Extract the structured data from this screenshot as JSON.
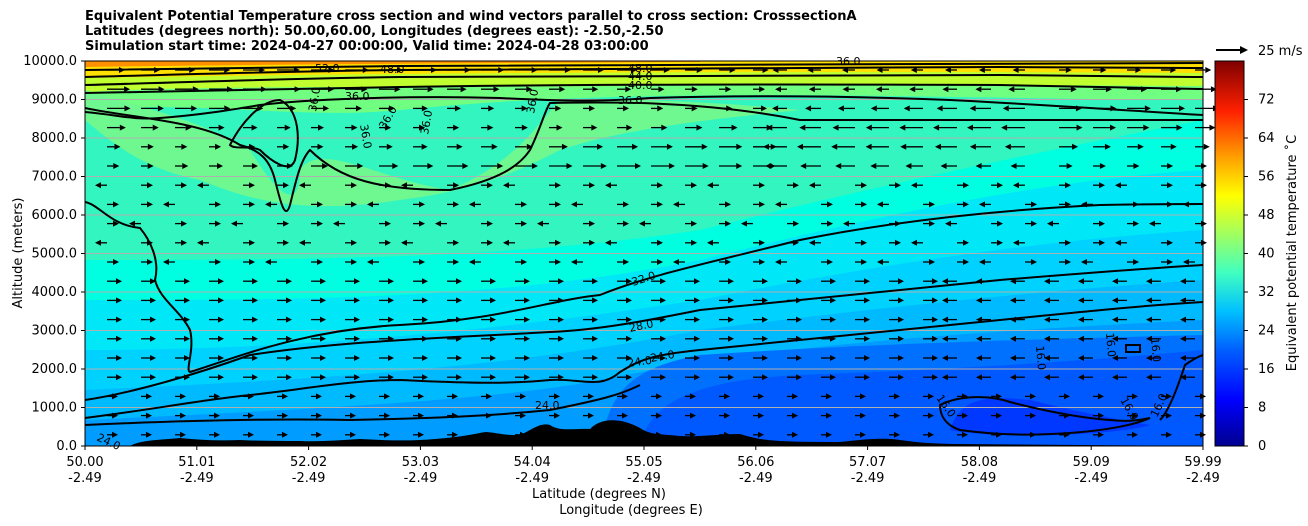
{
  "chart_data": {
    "type": "heatmap",
    "title_lines": [
      "Equivalent Potential Temperature cross section and wind vectors parallel to cross section: CrosssectionA",
      "Latitudes (degrees north): 50.00,60.00, Longitudes (degrees east): -2.50,-2.50",
      "Simulation start time: 2024-04-27 00:00:00, Valid time: 2024-04-28 03:00:00"
    ],
    "ylabel": "Altitude (meters)",
    "xlabel_lat": "Latitude (degrees N)",
    "xlabel_lon": "Longitude (degrees E)",
    "x_ticks": [
      {
        "lat": "50.00",
        "lon": "-2.49"
      },
      {
        "lat": "51.01",
        "lon": "-2.49"
      },
      {
        "lat": "52.02",
        "lon": "-2.49"
      },
      {
        "lat": "53.03",
        "lon": "-2.49"
      },
      {
        "lat": "54.04",
        "lon": "-2.49"
      },
      {
        "lat": "55.05",
        "lon": "-2.49"
      },
      {
        "lat": "56.06",
        "lon": "-2.49"
      },
      {
        "lat": "57.07",
        "lon": "-2.49"
      },
      {
        "lat": "58.08",
        "lon": "-2.49"
      },
      {
        "lat": "59.09",
        "lon": "-2.49"
      },
      {
        "lat": "59.99",
        "lon": "-2.49"
      }
    ],
    "y_ticks": [
      "0.0",
      "1000.0",
      "2000.0",
      "3000.0",
      "4000.0",
      "5000.0",
      "6000.0",
      "7000.0",
      "8000.0",
      "9000.0",
      "10000.0"
    ],
    "ylim": [
      0,
      10000
    ],
    "grid": "horizontal",
    "colorbar": {
      "label": "Equivalent potential temperature ˚C",
      "ticks": [
        "0",
        "8",
        "16",
        "24",
        "32",
        "40",
        "48",
        "56",
        "64",
        "72"
      ],
      "range": [
        0,
        80
      ]
    },
    "wind_key": "25 m/s",
    "contour_labels": [
      "52.0",
      "48.0",
      "48.0",
      "44.0",
      "40.0",
      "36.0",
      "36.0",
      "36.0",
      "36.0",
      "36.0",
      "36.0",
      "36.0",
      "32.0",
      "28.0",
      "24.0",
      "24.0",
      "24.0",
      "24.0",
      "16.0",
      "16.0",
      "16.0",
      "16.0",
      "16.0",
      "16.0",
      "36.0"
    ],
    "colors": {
      "low": "#00008f",
      "mid": "#00c8ff",
      "high": "#ff8000",
      "max": "#800000",
      "contour": "#000000",
      "terrain": "#000000"
    }
  }
}
